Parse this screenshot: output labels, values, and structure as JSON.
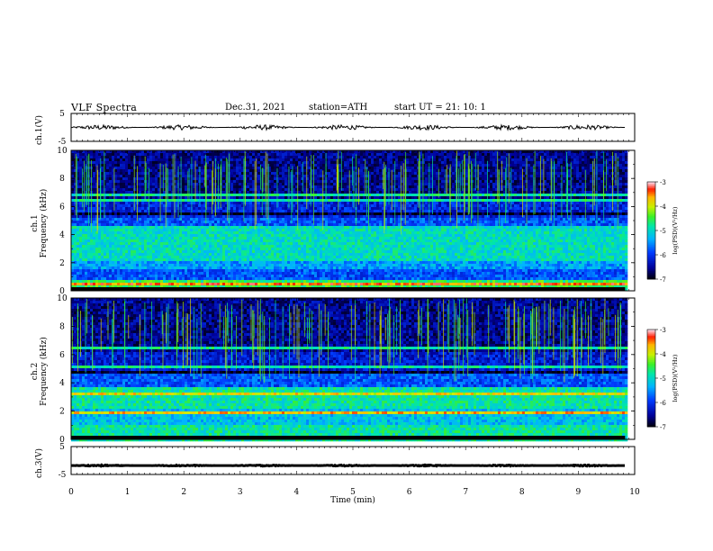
{
  "header": {
    "title": "VLF  Spectra",
    "date": "Dec.31, 2021",
    "station": "station=ATH",
    "start": "start  UT  =    21: 10: 1"
  },
  "chart_data": [
    {
      "type": "line",
      "name": "ch1-waveform",
      "ylabel": "ch.1(V)",
      "ylim": [
        -5,
        5
      ],
      "yticks": [
        "5",
        "-5"
      ],
      "xlim": [
        0,
        10
      ],
      "trace": {
        "x_end": 9.83,
        "baseline": 0.0,
        "amplitude": 0.9,
        "color": "#000000"
      }
    },
    {
      "type": "heatmap",
      "name": "ch1-spectrogram",
      "ylabel_line1": "ch.1",
      "ylabel_line2": "Frequency  (kHz)",
      "ylim": [
        0,
        10
      ],
      "yticks": [
        "0",
        "2",
        "4",
        "6",
        "8",
        "10"
      ],
      "xlim": [
        0,
        10
      ],
      "x_end": 9.83,
      "colorbar": {
        "label": "log(PSD)(V²/Hz)",
        "range": [
          -7,
          -3
        ],
        "ticks": [
          "-3",
          "-4",
          "-5",
          "-6",
          "-7"
        ]
      }
    },
    {
      "type": "heatmap",
      "name": "ch2-spectrogram",
      "ylabel_line1": "ch.2",
      "ylabel_line2": "Frequency  (kHz)",
      "ylim": [
        0,
        10
      ],
      "yticks": [
        "0",
        "2",
        "4",
        "6",
        "8",
        "10"
      ],
      "xlim": [
        0,
        10
      ],
      "x_end": 9.83,
      "colorbar": {
        "label": "log(PSD)(V²/Hz)",
        "range": [
          -7,
          -3
        ],
        "ticks": [
          "-3",
          "-4",
          "-5",
          "-6",
          "-7"
        ]
      }
    },
    {
      "type": "line",
      "name": "ch3-waveform",
      "ylabel": "ch.3(V)",
      "ylim": [
        -5,
        5
      ],
      "yticks": [
        "5",
        "-5"
      ],
      "xlim": [
        0,
        10
      ],
      "xlabel": "Time  (min)",
      "xticks": [
        "0",
        "1",
        "2",
        "3",
        "4",
        "5",
        "6",
        "7",
        "8",
        "9",
        "10"
      ],
      "trace": {
        "x_end": 9.83,
        "baseline": -1.8,
        "amplitude": 0.2,
        "color": "#000000"
      }
    }
  ]
}
